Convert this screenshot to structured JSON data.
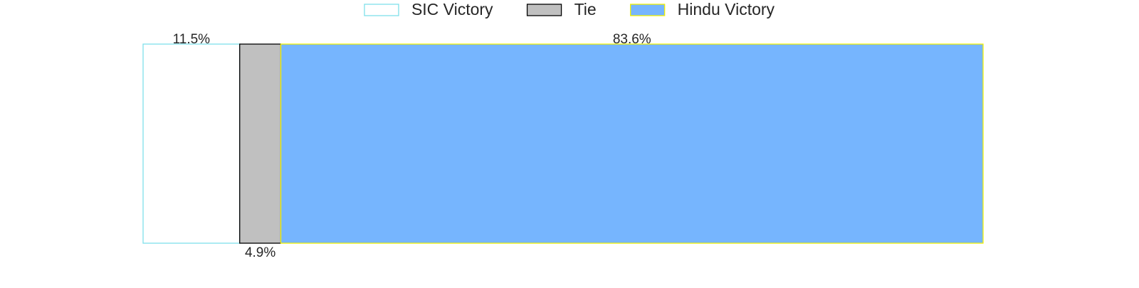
{
  "chart_data": {
    "type": "bar",
    "orientation": "horizontal-stacked",
    "title": "",
    "xlabel": "",
    "ylabel": "",
    "xlim": [
      0,
      100
    ],
    "grid": false,
    "legend_placement": "top-center",
    "series": [
      {
        "name": "SIC Victory",
        "value": 11.5,
        "label": "11.5%",
        "label_position": "top",
        "fill": "#ffffff",
        "stroke": "#7fe0ea"
      },
      {
        "name": "Tie",
        "value": 4.9,
        "label": "4.9%",
        "label_position": "bottom",
        "fill": "#c0c0c0",
        "stroke": "#000000"
      },
      {
        "name": "Hindu Victory",
        "value": 83.6,
        "label": "83.6%",
        "label_position": "top",
        "fill": "#76b5fe",
        "stroke": "#f2f200"
      }
    ]
  }
}
